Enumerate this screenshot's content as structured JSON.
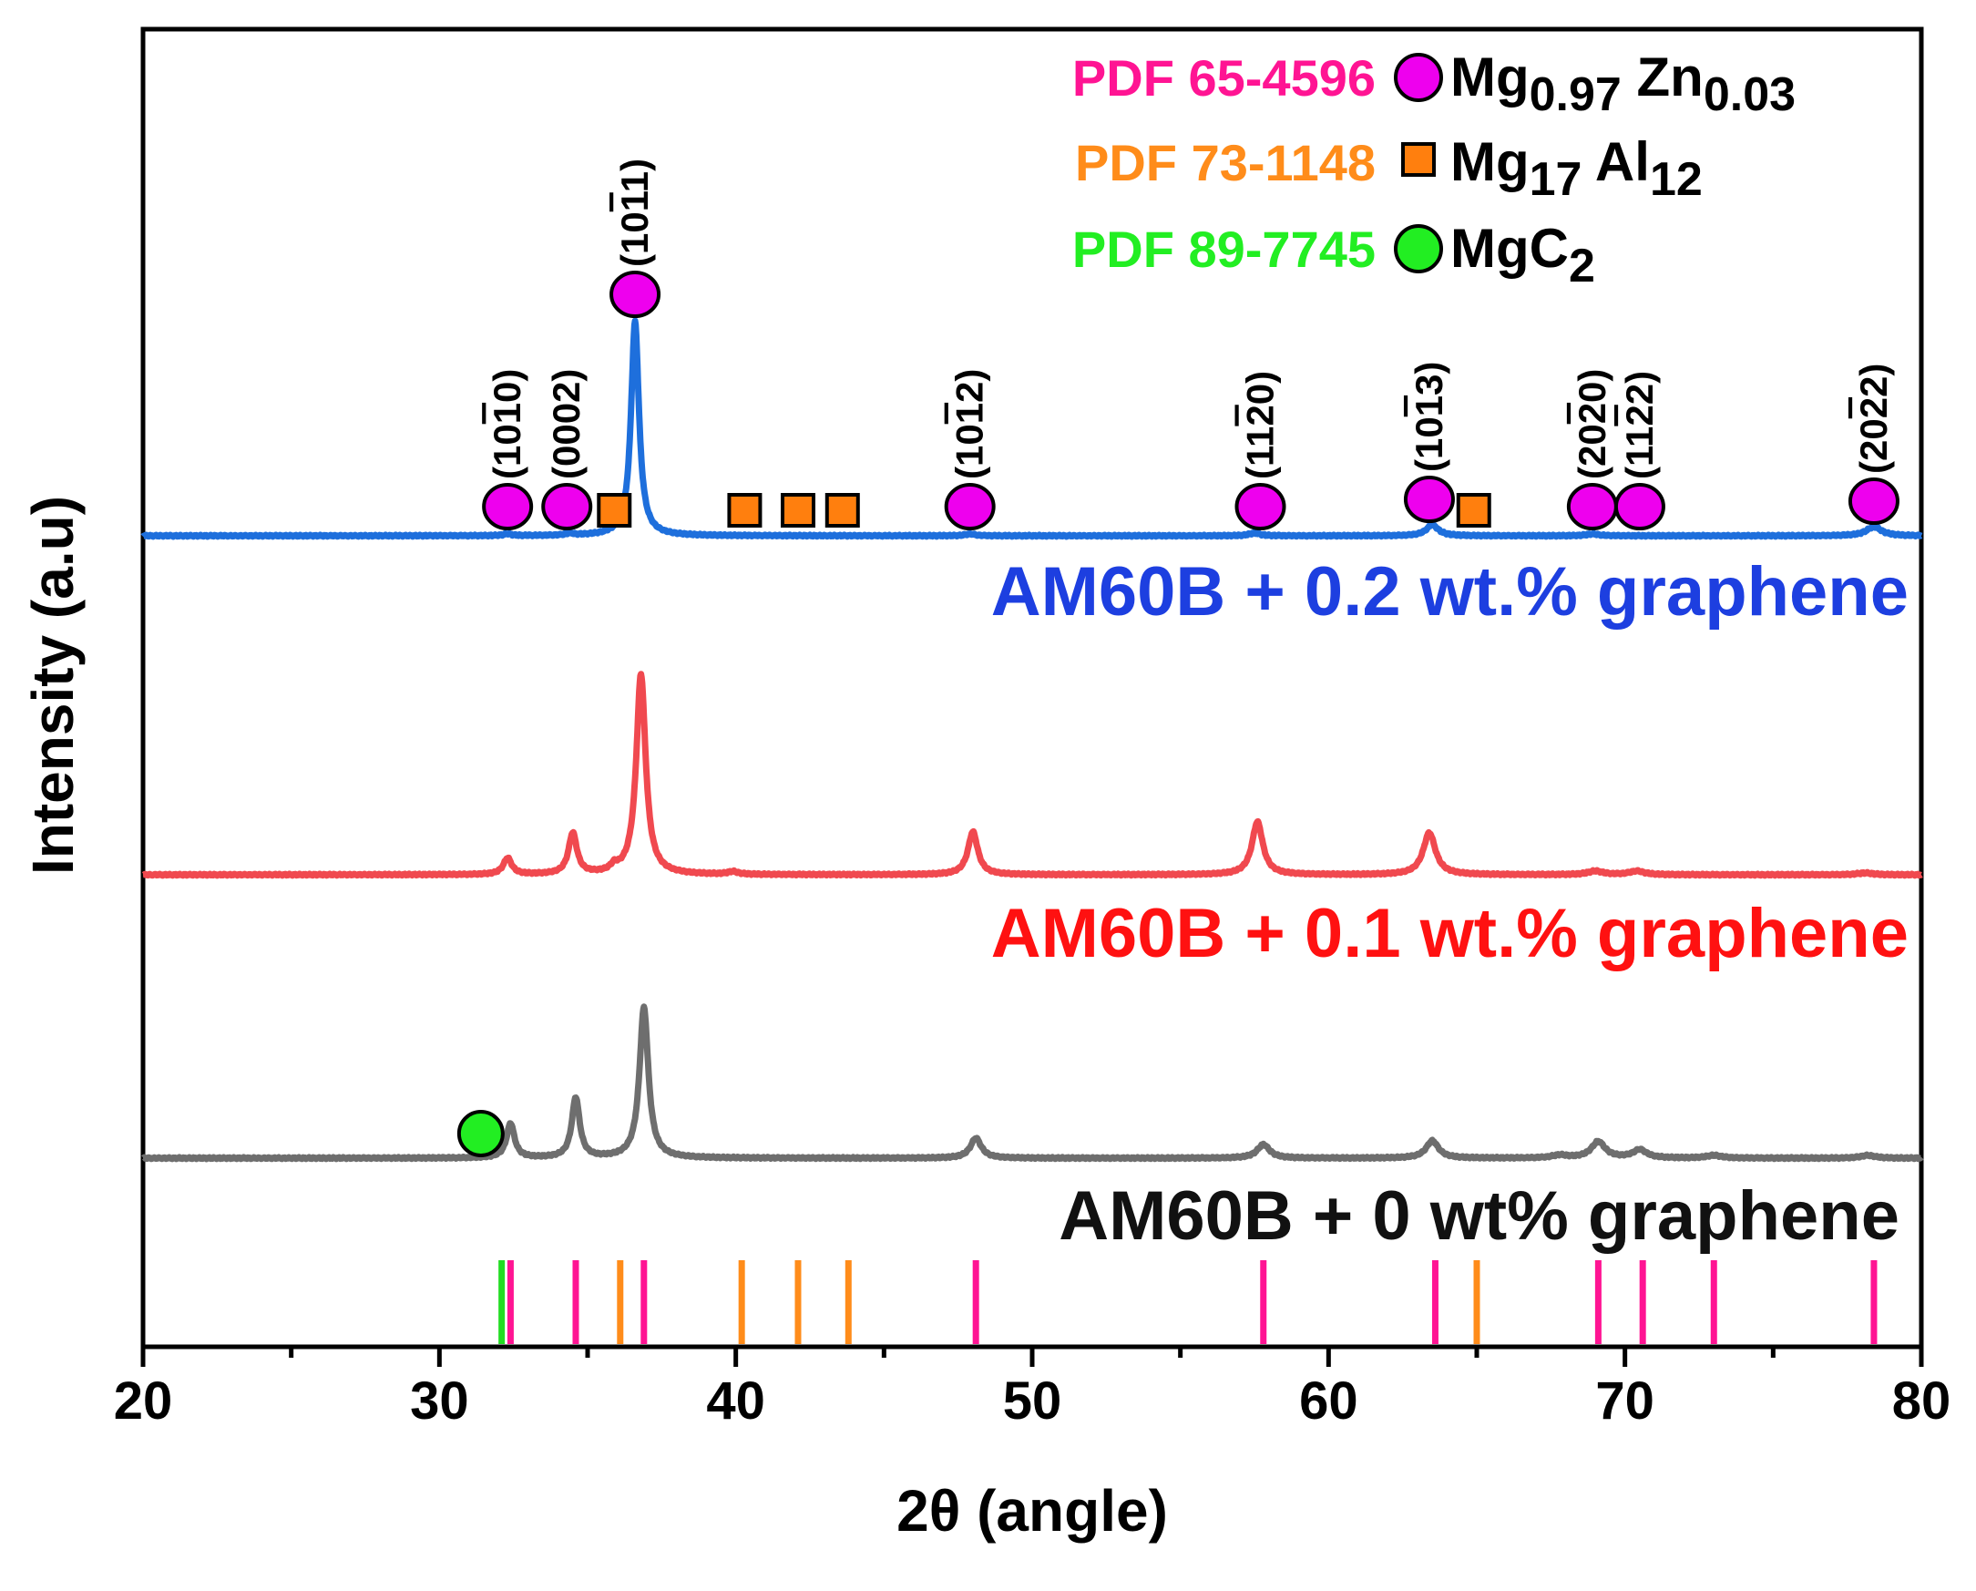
{
  "chart_data": {
    "type": "line",
    "xlabel": "2θ (angle)",
    "ylabel": "Intensity (a.u)",
    "xlim": [
      20,
      80
    ],
    "xticks": [
      20,
      30,
      40,
      50,
      60,
      70,
      80
    ],
    "xtick_labels": [
      "20",
      "30",
      "40",
      "50",
      "60",
      "70",
      "80"
    ],
    "y_ticks": "none",
    "legend": [
      {
        "pdf": "PDF 65-4596",
        "marker": "circle",
        "fill": "#ee00ee",
        "pdf_color": "#ff1493",
        "phase_main": "Mg",
        "sub1": "0.97",
        "phase_mid": " Zn",
        "sub2": "0.03"
      },
      {
        "pdf": "PDF 73-1148",
        "marker": "square",
        "fill": "#ff7f0e",
        "pdf_color": "#ff8c1a",
        "phase_main": "Mg",
        "sub1": "17",
        "phase_mid": " Al",
        "sub2": "12"
      },
      {
        "pdf": "PDF 89-7745",
        "marker": "circle",
        "fill": "#22ee22",
        "pdf_color": "#22ee22",
        "phase_main": "MgC",
        "sub1": "2",
        "phase_mid": "",
        "sub2": ""
      }
    ],
    "series": [
      {
        "name": "AM60B + 0.2 wt.% graphene",
        "color": "#1e6fdc",
        "label_color": "#1d3fe0",
        "baseline": 0,
        "peaks": [
          [
            32.3,
            2,
            0.15
          ],
          [
            34.4,
            2,
            0.15
          ],
          [
            36.6,
            235,
            0.16
          ],
          [
            47.9,
            2,
            0.2
          ],
          [
            57.5,
            3,
            0.22
          ],
          [
            63.5,
            12,
            0.24
          ],
          [
            68.9,
            2,
            0.25
          ],
          [
            78.4,
            10,
            0.3
          ]
        ]
      },
      {
        "name": "AM60B + 0.1 wt.% graphene",
        "color": "#f0494f",
        "label_color": "#ff1111",
        "baseline": 0,
        "peaks": [
          [
            32.3,
            18,
            0.17
          ],
          [
            34.5,
            45,
            0.17
          ],
          [
            35.9,
            6,
            0.15
          ],
          [
            36.8,
            220,
            0.19
          ],
          [
            39.9,
            3,
            0.2
          ],
          [
            48.0,
            47,
            0.2
          ],
          [
            57.6,
            58,
            0.22
          ],
          [
            63.4,
            46,
            0.25
          ],
          [
            69.0,
            4,
            0.3
          ],
          [
            70.4,
            4,
            0.3
          ],
          [
            78.1,
            2,
            0.3
          ]
        ]
      },
      {
        "name": "AM60B + 0 wt% graphene",
        "color": "#6e6e6e",
        "label_color": "#111111",
        "baseline": 0,
        "peaks": [
          [
            32.4,
            38,
            0.16
          ],
          [
            34.6,
            66,
            0.16
          ],
          [
            36.9,
            165,
            0.18
          ],
          [
            48.1,
            22,
            0.22
          ],
          [
            57.8,
            15,
            0.25
          ],
          [
            63.5,
            19,
            0.25
          ],
          [
            67.8,
            3,
            0.3
          ],
          [
            69.1,
            18,
            0.28
          ],
          [
            70.5,
            9,
            0.28
          ],
          [
            73.0,
            3,
            0.3
          ],
          [
            78.2,
            3,
            0.3
          ]
        ]
      }
    ],
    "peak_markers": [
      {
        "x": 32.3,
        "type": "circle",
        "phase": "Mg0.97Zn0.03",
        "label": "(10-10)",
        "h": "10",
        "bar": "1",
        "t": "0"
      },
      {
        "x": 34.3,
        "type": "circle",
        "phase": "Mg0.97Zn0.03",
        "label": "(0002)",
        "h": "0002",
        "bar": "",
        "t": ""
      },
      {
        "x": 35.9,
        "type": "square",
        "phase": "Mg17Al12"
      },
      {
        "x": 36.6,
        "type": "circle",
        "phase": "Mg0.97Zn0.03",
        "label": "(10-11)",
        "h": "10",
        "bar": "1",
        "t": "1"
      },
      {
        "x": 40.3,
        "type": "square",
        "phase": "Mg17Al12"
      },
      {
        "x": 42.1,
        "type": "square",
        "phase": "Mg17Al12"
      },
      {
        "x": 43.6,
        "type": "square",
        "phase": "Mg17Al12"
      },
      {
        "x": 47.9,
        "type": "circle",
        "phase": "Mg0.97Zn0.03",
        "label": "(10-12)",
        "h": "10",
        "bar": "1",
        "t": "2"
      },
      {
        "x": 57.7,
        "type": "circle",
        "phase": "Mg0.97Zn0.03",
        "label": "(11-20)",
        "h": "11",
        "bar": "2",
        "t": "0"
      },
      {
        "x": 63.4,
        "type": "circle",
        "phase": "Mg0.97Zn0.03",
        "label": "(10-13)",
        "h": "10",
        "bar": "1",
        "t": "3"
      },
      {
        "x": 64.9,
        "type": "square",
        "phase": "Mg17Al12"
      },
      {
        "x": 68.9,
        "type": "circle",
        "phase": "Mg0.97Zn0.03",
        "label": "(20-20)",
        "h": "20",
        "bar": "2",
        "t": "0"
      },
      {
        "x": 70.5,
        "type": "circle",
        "phase": "Mg0.97Zn0.03",
        "label": "(11-22)",
        "h": "11",
        "bar": "2",
        "t": "2"
      },
      {
        "x": 78.4,
        "type": "circle",
        "phase": "Mg0.97Zn0.03",
        "label": "(20-22)",
        "h": "20",
        "bar": "2",
        "t": "2"
      },
      {
        "x": 31.4,
        "type": "circle-green",
        "phase": "MgC2"
      }
    ],
    "reference_lines": [
      {
        "x": 32.1,
        "phase": "MgC2"
      },
      {
        "x": 32.4,
        "phase": "Mg0.97Zn0.03"
      },
      {
        "x": 34.6,
        "phase": "Mg0.97Zn0.03"
      },
      {
        "x": 36.1,
        "phase": "Mg17Al12"
      },
      {
        "x": 36.9,
        "phase": "Mg0.97Zn0.03"
      },
      {
        "x": 40.2,
        "phase": "Mg17Al12"
      },
      {
        "x": 42.1,
        "phase": "Mg17Al12"
      },
      {
        "x": 43.8,
        "phase": "Mg17Al12"
      },
      {
        "x": 48.1,
        "phase": "Mg0.97Zn0.03"
      },
      {
        "x": 57.8,
        "phase": "Mg0.97Zn0.03"
      },
      {
        "x": 63.6,
        "phase": "Mg0.97Zn0.03"
      },
      {
        "x": 65.0,
        "phase": "Mg17Al12"
      },
      {
        "x": 69.1,
        "phase": "Mg0.97Zn0.03"
      },
      {
        "x": 70.6,
        "phase": "Mg0.97Zn0.03"
      },
      {
        "x": 73.0,
        "phase": "Mg0.97Zn0.03"
      },
      {
        "x": 78.4,
        "phase": "Mg0.97Zn0.03"
      }
    ],
    "phase_colors": {
      "Mg0.97Zn0.03": "#ff1493",
      "Mg17Al12": "#ff8c1a",
      "MgC2": "#22dd22"
    }
  }
}
